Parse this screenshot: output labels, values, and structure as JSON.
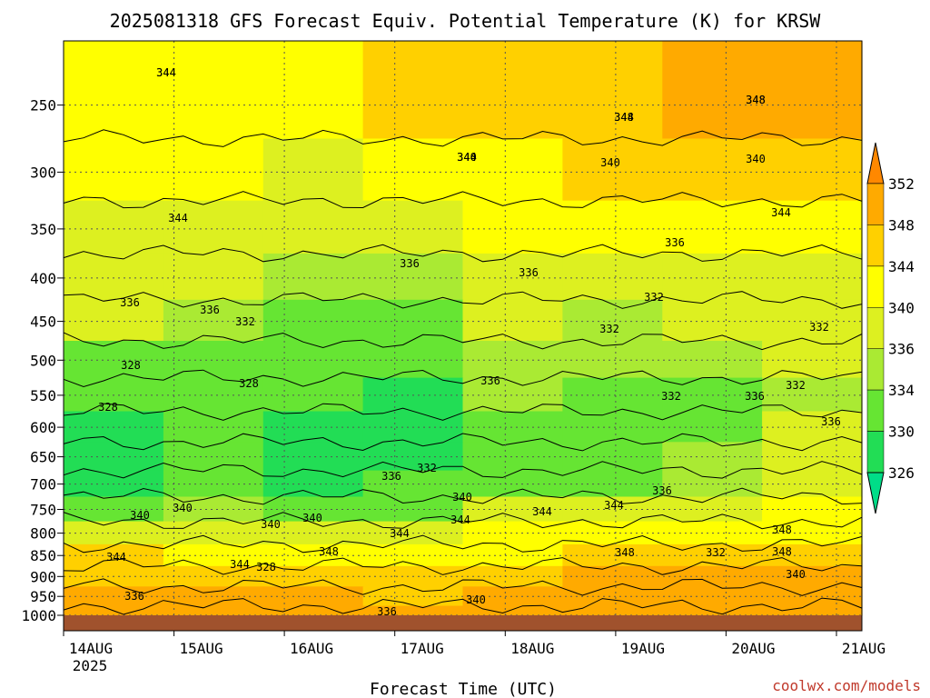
{
  "chart_data": {
    "type": "heatmap",
    "title": "2025081318 GFS Forecast Equiv. Potential Temperature (K) for KRSW",
    "xlabel": "Forecast Time (UTC)",
    "ylabel": "",
    "credit": "coolwx.com/models",
    "x_ticks": [
      "14AUG",
      "15AUG",
      "16AUG",
      "17AUG",
      "18AUG",
      "19AUG",
      "20AUG",
      "21AUG"
    ],
    "x_year": "2025",
    "y_ticks": [
      "250",
      "300",
      "350",
      "400",
      "450",
      "500",
      "550",
      "600",
      "650",
      "700",
      "750",
      "800",
      "850",
      "900",
      "950",
      "1000"
    ],
    "y_scale": "log",
    "grid": true,
    "colorbar": {
      "ticks": [
        "352",
        "348",
        "344",
        "340",
        "336",
        "334",
        "330",
        "326"
      ],
      "colors": [
        "#ff8800",
        "#ffaa00",
        "#ffd000",
        "#ffff00",
        "#ddf020",
        "#aaea33",
        "#66e533",
        "#22dd55",
        "#00dd88"
      ]
    },
    "contour_labels": [
      "344",
      "348",
      "344",
      "340",
      "340",
      "340",
      "344",
      "344",
      "336",
      "336",
      "336",
      "336",
      "336",
      "332",
      "332",
      "332",
      "332",
      "328",
      "328",
      "328",
      "336",
      "332",
      "332",
      "336",
      "336",
      "336",
      "332",
      "336",
      "340",
      "340",
      "340",
      "340",
      "340",
      "344",
      "344",
      "344",
      "344",
      "348",
      "348",
      "348",
      "344",
      "344",
      "348",
      "328",
      "332",
      "336",
      "340",
      "336",
      "340",
      "344",
      "348",
      "348",
      "344"
    ],
    "series": [
      {
        "values": [
          [
            341,
            342,
            340,
            344,
            346,
            347,
            349,
            350
          ],
          [
            340,
            341,
            339,
            340,
            342,
            344,
            346,
            347
          ],
          [
            339,
            338,
            336,
            337,
            340,
            340,
            342,
            343
          ],
          [
            338,
            336,
            334,
            335,
            337,
            336,
            338,
            339
          ],
          [
            336,
            334,
            333,
            333,
            336,
            335,
            336,
            337
          ],
          [
            332,
            333,
            332,
            331,
            335,
            334,
            334,
            336
          ],
          [
            331,
            332,
            330,
            329,
            334,
            333,
            333,
            335
          ],
          [
            329,
            331,
            329,
            328,
            333,
            332,
            333,
            336
          ],
          [
            328,
            330,
            327,
            327,
            332,
            331,
            334,
            337
          ],
          [
            329,
            330,
            328,
            330,
            333,
            333,
            335,
            339
          ],
          [
            333,
            334,
            332,
            333,
            336,
            337,
            338,
            341
          ],
          [
            339,
            338,
            337,
            338,
            340,
            340,
            342,
            343
          ],
          [
            345,
            343,
            342,
            342,
            343,
            344,
            346,
            346
          ],
          [
            347,
            346,
            345,
            346,
            346,
            348,
            349,
            349
          ],
          [
            348,
            349,
            348,
            347,
            348,
            349,
            350,
            350
          ],
          [
            349,
            350,
            351,
            348,
            349,
            350,
            350,
            351
          ]
        ]
      }
    ]
  }
}
